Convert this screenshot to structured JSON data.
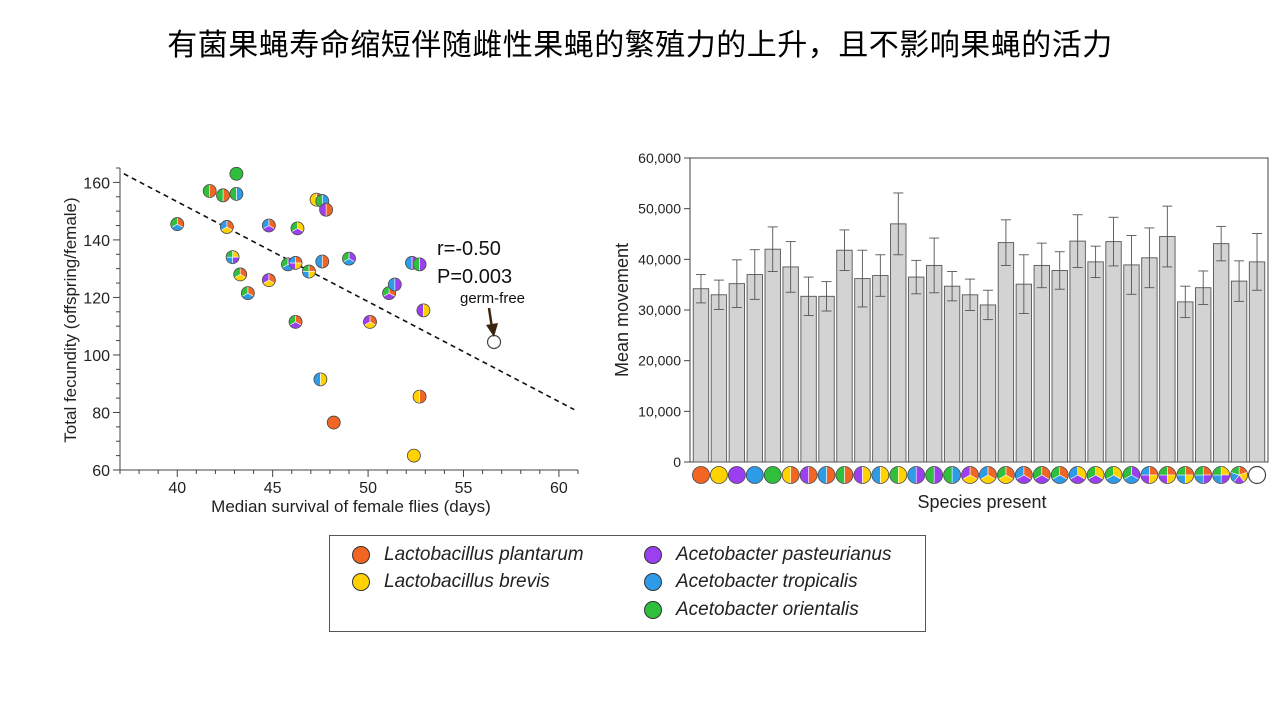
{
  "slide": {
    "title": "有菌果蝇寿命缩短伴随雌性果蝇的繁殖力的上升，且不影响果蝇的活力"
  },
  "colors": {
    "plantarum": "#f26522",
    "brevis": "#ffd200",
    "pasteurianus": "#9b3ff0",
    "tropicalis": "#2e9be8",
    "orientalis": "#2fbf3c"
  },
  "legend": {
    "items": [
      {
        "key": "plantarum",
        "label": "Lactobacillus plantarum"
      },
      {
        "key": "brevis",
        "label": "Lactobacillus brevis"
      },
      {
        "key": "pasteurianus",
        "label": "Acetobacter pasteurianus"
      },
      {
        "key": "tropicalis",
        "label": "Acetobacter tropicalis"
      },
      {
        "key": "orientalis",
        "label": "Acetobacter orientalis"
      }
    ]
  },
  "chart_data": [
    {
      "type": "scatter",
      "xlabel": "Median survival of female flies (days)",
      "ylabel": "Total fecundity (offspring/female)",
      "xlim": [
        37,
        61
      ],
      "ylim": [
        60,
        165
      ],
      "xticks": [
        40,
        45,
        50,
        55,
        60
      ],
      "yticks": [
        60,
        80,
        100,
        120,
        140,
        160
      ],
      "annotations": {
        "r": "r=-0.50",
        "p": "P=0.003",
        "germ_free": "germ-free"
      },
      "trendline": {
        "x": [
          37.2,
          60.8
        ],
        "y": [
          163,
          81
        ]
      },
      "points": [
        {
          "x": 40.0,
          "y": 145.5,
          "species": [
            "plantarum",
            "tropicalis",
            "orientalis"
          ]
        },
        {
          "x": 41.7,
          "y": 157.0,
          "species": [
            "plantarum",
            "orientalis"
          ]
        },
        {
          "x": 42.4,
          "y": 155.5,
          "species": [
            "plantarum",
            "orientalis"
          ]
        },
        {
          "x": 43.1,
          "y": 156.0,
          "species": [
            "tropicalis",
            "orientalis"
          ]
        },
        {
          "x": 43.1,
          "y": 163.0,
          "species": [
            "orientalis"
          ]
        },
        {
          "x": 42.6,
          "y": 144.5,
          "species": [
            "plantarum",
            "brevis",
            "tropicalis"
          ]
        },
        {
          "x": 42.9,
          "y": 134.0,
          "species": [
            "brevis",
            "pasteurianus",
            "tropicalis",
            "orientalis"
          ]
        },
        {
          "x": 43.3,
          "y": 128.0,
          "species": [
            "plantarum",
            "brevis",
            "orientalis"
          ]
        },
        {
          "x": 43.7,
          "y": 121.5,
          "species": [
            "plantarum",
            "tropicalis",
            "orientalis"
          ]
        },
        {
          "x": 44.8,
          "y": 145.0,
          "species": [
            "plantarum",
            "pasteurianus",
            "tropicalis"
          ]
        },
        {
          "x": 44.8,
          "y": 126.0,
          "species": [
            "plantarum",
            "brevis",
            "pasteurianus"
          ]
        },
        {
          "x": 45.8,
          "y": 131.5,
          "species": [
            "pasteurianus",
            "tropicalis",
            "orientalis"
          ]
        },
        {
          "x": 46.2,
          "y": 132.0,
          "species": [
            "plantarum",
            "brevis",
            "pasteurianus",
            "tropicalis"
          ]
        },
        {
          "x": 46.3,
          "y": 144.0,
          "species": [
            "brevis",
            "pasteurianus",
            "orientalis"
          ]
        },
        {
          "x": 46.2,
          "y": 111.5,
          "species": [
            "plantarum",
            "pasteurianus",
            "orientalis"
          ]
        },
        {
          "x": 46.9,
          "y": 129.0,
          "species": [
            "plantarum",
            "brevis",
            "tropicalis",
            "orientalis"
          ]
        },
        {
          "x": 47.3,
          "y": 154.0,
          "species": [
            "plantarum",
            "brevis"
          ]
        },
        {
          "x": 47.6,
          "y": 153.5,
          "species": [
            "tropicalis",
            "orientalis"
          ]
        },
        {
          "x": 47.8,
          "y": 150.5,
          "species": [
            "plantarum",
            "pasteurianus"
          ]
        },
        {
          "x": 47.6,
          "y": 132.5,
          "species": [
            "plantarum",
            "tropicalis"
          ]
        },
        {
          "x": 47.5,
          "y": 91.5,
          "species": [
            "brevis",
            "tropicalis"
          ]
        },
        {
          "x": 48.2,
          "y": 76.5,
          "species": [
            "plantarum"
          ]
        },
        {
          "x": 49.0,
          "y": 133.5,
          "species": [
            "pasteurianus",
            "tropicalis",
            "orientalis"
          ]
        },
        {
          "x": 50.1,
          "y": 111.5,
          "species": [
            "plantarum",
            "brevis",
            "pasteurianus"
          ]
        },
        {
          "x": 51.1,
          "y": 121.5,
          "species": [
            "plantarum",
            "pasteurianus",
            "orientalis"
          ]
        },
        {
          "x": 51.4,
          "y": 124.5,
          "species": [
            "pasteurianus",
            "tropicalis"
          ]
        },
        {
          "x": 52.3,
          "y": 132.0,
          "species": [
            "pasteurianus",
            "tropicalis"
          ]
        },
        {
          "x": 52.7,
          "y": 131.5,
          "species": [
            "pasteurianus",
            "orientalis"
          ]
        },
        {
          "x": 52.7,
          "y": 85.5,
          "species": [
            "plantarum",
            "brevis"
          ]
        },
        {
          "x": 52.9,
          "y": 115.5,
          "species": [
            "brevis",
            "pasteurianus"
          ]
        },
        {
          "x": 52.4,
          "y": 65.0,
          "species": [
            "brevis"
          ]
        },
        {
          "x": 56.6,
          "y": 104.5,
          "species": [],
          "germ_free": true
        }
      ]
    },
    {
      "type": "bar",
      "xlabel": "Species present",
      "ylabel": "Mean movement",
      "ylim": [
        0,
        60000
      ],
      "yticks": [
        0,
        10000,
        20000,
        30000,
        40000,
        50000,
        60000
      ],
      "ytick_labels": [
        "0",
        "10,000",
        "20,000",
        "30,000",
        "40,000",
        "50,000",
        "60,000"
      ],
      "values": [
        34200,
        33000,
        35200,
        37000,
        42000,
        38500,
        32700,
        32700,
        41800,
        36200,
        36800,
        47000,
        36500,
        38800,
        34700,
        33000,
        31000,
        43300,
        35100,
        38800,
        37800,
        43600,
        39500,
        43500,
        38900,
        40300,
        44500,
        31600,
        34400,
        43100,
        35700,
        39500
      ],
      "errors": [
        2800,
        2900,
        4700,
        4900,
        4400,
        5000,
        3800,
        2900,
        4000,
        5600,
        4100,
        6100,
        3300,
        5400,
        2900,
        3100,
        2900,
        4500,
        5800,
        4400,
        3700,
        5200,
        3100,
        4800,
        5800,
        5900,
        6000,
        3100,
        3300,
        3400,
        4000,
        5600
      ],
      "species": [
        [
          "plantarum"
        ],
        [
          "brevis"
        ],
        [
          "pasteurianus"
        ],
        [
          "tropicalis"
        ],
        [
          "orientalis"
        ],
        [
          "plantarum",
          "brevis"
        ],
        [
          "plantarum",
          "pasteurianus"
        ],
        [
          "plantarum",
          "tropicalis"
        ],
        [
          "plantarum",
          "orientalis"
        ],
        [
          "brevis",
          "pasteurianus"
        ],
        [
          "brevis",
          "tropicalis"
        ],
        [
          "brevis",
          "orientalis"
        ],
        [
          "pasteurianus",
          "tropicalis"
        ],
        [
          "pasteurianus",
          "orientalis"
        ],
        [
          "tropicalis",
          "orientalis"
        ],
        [
          "plantarum",
          "brevis",
          "pasteurianus"
        ],
        [
          "plantarum",
          "brevis",
          "tropicalis"
        ],
        [
          "plantarum",
          "brevis",
          "orientalis"
        ],
        [
          "plantarum",
          "pasteurianus",
          "tropicalis"
        ],
        [
          "plantarum",
          "pasteurianus",
          "orientalis"
        ],
        [
          "plantarum",
          "tropicalis",
          "orientalis"
        ],
        [
          "brevis",
          "pasteurianus",
          "tropicalis"
        ],
        [
          "brevis",
          "pasteurianus",
          "orientalis"
        ],
        [
          "brevis",
          "tropicalis",
          "orientalis"
        ],
        [
          "pasteurianus",
          "tropicalis",
          "orientalis"
        ],
        [
          "plantarum",
          "brevis",
          "pasteurianus",
          "tropicalis"
        ],
        [
          "plantarum",
          "brevis",
          "pasteurianus",
          "orientalis"
        ],
        [
          "plantarum",
          "brevis",
          "tropicalis",
          "orientalis"
        ],
        [
          "plantarum",
          "pasteurianus",
          "tropicalis",
          "orientalis"
        ],
        [
          "brevis",
          "pasteurianus",
          "tropicalis",
          "orientalis"
        ],
        [
          "plantarum",
          "brevis",
          "pasteurianus",
          "tropicalis",
          "orientalis"
        ],
        []
      ]
    }
  ]
}
